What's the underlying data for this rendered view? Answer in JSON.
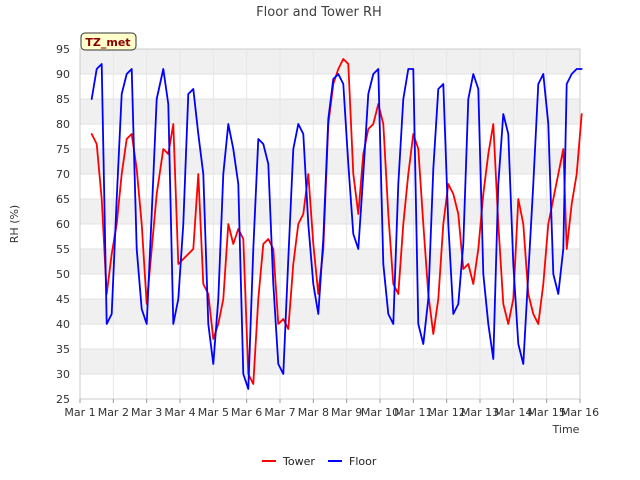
{
  "chart_data": {
    "type": "line",
    "title": "Floor and Tower RH",
    "xlabel": "Time",
    "ylabel": "RH (%)",
    "xlim": [
      0,
      15
    ],
    "ylim": [
      25,
      95
    ],
    "yticks": [
      25,
      30,
      35,
      40,
      45,
      50,
      55,
      60,
      65,
      70,
      75,
      80,
      85,
      90,
      95
    ],
    "xticks": [
      "Mar 1",
      "Mar 2",
      "Mar 3",
      "Mar 4",
      "Mar 5",
      "Mar 6",
      "Mar 7",
      "Mar 8",
      "Mar 9",
      "Mar 10",
      "Mar 11",
      "Mar 12",
      "Mar 13",
      "Mar 14",
      "Mar 15",
      "Mar 16"
    ],
    "grid": true,
    "badge": "TZ_met",
    "legend_position": "bottom-center",
    "series": [
      {
        "name": "Tower",
        "color": "#ff0000",
        "x": [
          0.35,
          0.5,
          0.65,
          0.8,
          0.95,
          1.1,
          1.25,
          1.4,
          1.55,
          1.7,
          1.85,
          2.0,
          2.15,
          2.3,
          2.5,
          2.65,
          2.8,
          2.95,
          3.1,
          3.25,
          3.4,
          3.55,
          3.7,
          3.85,
          4.0,
          4.15,
          4.3,
          4.45,
          4.6,
          4.75,
          4.9,
          5.05,
          5.2,
          5.35,
          5.5,
          5.65,
          5.8,
          5.95,
          6.1,
          6.25,
          6.4,
          6.55,
          6.7,
          6.85,
          7.0,
          7.15,
          7.3,
          7.45,
          7.6,
          7.75,
          7.9,
          8.05,
          8.2,
          8.35,
          8.5,
          8.65,
          8.8,
          8.95,
          9.1,
          9.25,
          9.4,
          9.55,
          9.7,
          9.85,
          10.0,
          10.15,
          10.3,
          10.45,
          10.6,
          10.75,
          10.9,
          11.05,
          11.2,
          11.35,
          11.5,
          11.65,
          11.8,
          11.95,
          12.1,
          12.25,
          12.4,
          12.55,
          12.7,
          12.85,
          13.0,
          13.15,
          13.3,
          13.45,
          13.6,
          13.75,
          13.9,
          14.05,
          14.2,
          14.35,
          14.5,
          14.6,
          14.75,
          14.9,
          15.05
        ],
        "values": [
          78,
          76,
          65,
          46,
          54,
          60,
          70,
          77,
          78,
          71,
          60,
          44,
          55,
          66,
          75,
          74,
          80,
          52,
          53,
          54,
          55,
          70,
          48,
          46,
          37,
          40,
          45,
          60,
          56,
          59,
          57,
          30,
          28,
          45,
          56,
          57,
          55,
          40,
          41,
          39,
          52,
          60,
          62,
          70,
          56,
          46,
          55,
          80,
          88,
          91,
          93,
          92,
          70,
          62,
          74,
          79,
          80,
          84,
          80,
          62,
          48,
          46,
          60,
          70,
          78,
          75,
          60,
          46,
          38,
          45,
          60,
          68,
          66,
          62,
          51,
          52,
          48,
          55,
          66,
          74,
          80,
          60,
          44,
          40,
          45,
          65,
          60,
          46,
          42,
          40,
          48,
          60,
          65,
          70,
          75,
          55,
          64,
          70,
          82
        ]
      },
      {
        "name": "Floor",
        "color": "#0000ff",
        "x": [
          0.35,
          0.5,
          0.65,
          0.8,
          0.95,
          1.1,
          1.25,
          1.4,
          1.55,
          1.7,
          1.85,
          2.0,
          2.15,
          2.3,
          2.5,
          2.65,
          2.8,
          2.95,
          3.1,
          3.25,
          3.4,
          3.55,
          3.7,
          3.85,
          4.0,
          4.15,
          4.3,
          4.45,
          4.6,
          4.75,
          4.9,
          5.05,
          5.2,
          5.35,
          5.5,
          5.65,
          5.8,
          5.95,
          6.1,
          6.25,
          6.4,
          6.55,
          6.7,
          6.85,
          7.0,
          7.15,
          7.3,
          7.45,
          7.6,
          7.75,
          7.9,
          8.05,
          8.2,
          8.35,
          8.5,
          8.65,
          8.8,
          8.95,
          9.1,
          9.25,
          9.4,
          9.55,
          9.7,
          9.85,
          10.0,
          10.15,
          10.3,
          10.45,
          10.6,
          10.75,
          10.9,
          11.05,
          11.2,
          11.35,
          11.5,
          11.65,
          11.8,
          11.95,
          12.1,
          12.25,
          12.4,
          12.55,
          12.7,
          12.85,
          13.0,
          13.15,
          13.3,
          13.45,
          13.6,
          13.75,
          13.9,
          14.05,
          14.2,
          14.35,
          14.5,
          14.6,
          14.75,
          14.9,
          15.05
        ],
        "values": [
          85,
          91,
          92,
          40,
          42,
          65,
          86,
          90,
          91,
          55,
          43,
          40,
          62,
          85,
          91,
          84,
          40,
          45,
          60,
          86,
          87,
          78,
          70,
          40,
          32,
          45,
          70,
          80,
          75,
          68,
          30,
          27,
          55,
          77,
          76,
          72,
          48,
          32,
          30,
          53,
          75,
          80,
          78,
          60,
          48,
          42,
          57,
          81,
          89,
          90,
          88,
          72,
          58,
          55,
          70,
          86,
          90,
          91,
          52,
          42,
          40,
          68,
          85,
          91,
          91,
          40,
          36,
          45,
          71,
          87,
          88,
          60,
          42,
          44,
          56,
          85,
          90,
          87,
          50,
          40,
          33,
          68,
          82,
          78,
          52,
          36,
          32,
          50,
          68,
          88,
          90,
          80,
          50,
          46,
          55,
          88,
          90,
          91,
          91
        ]
      }
    ]
  }
}
